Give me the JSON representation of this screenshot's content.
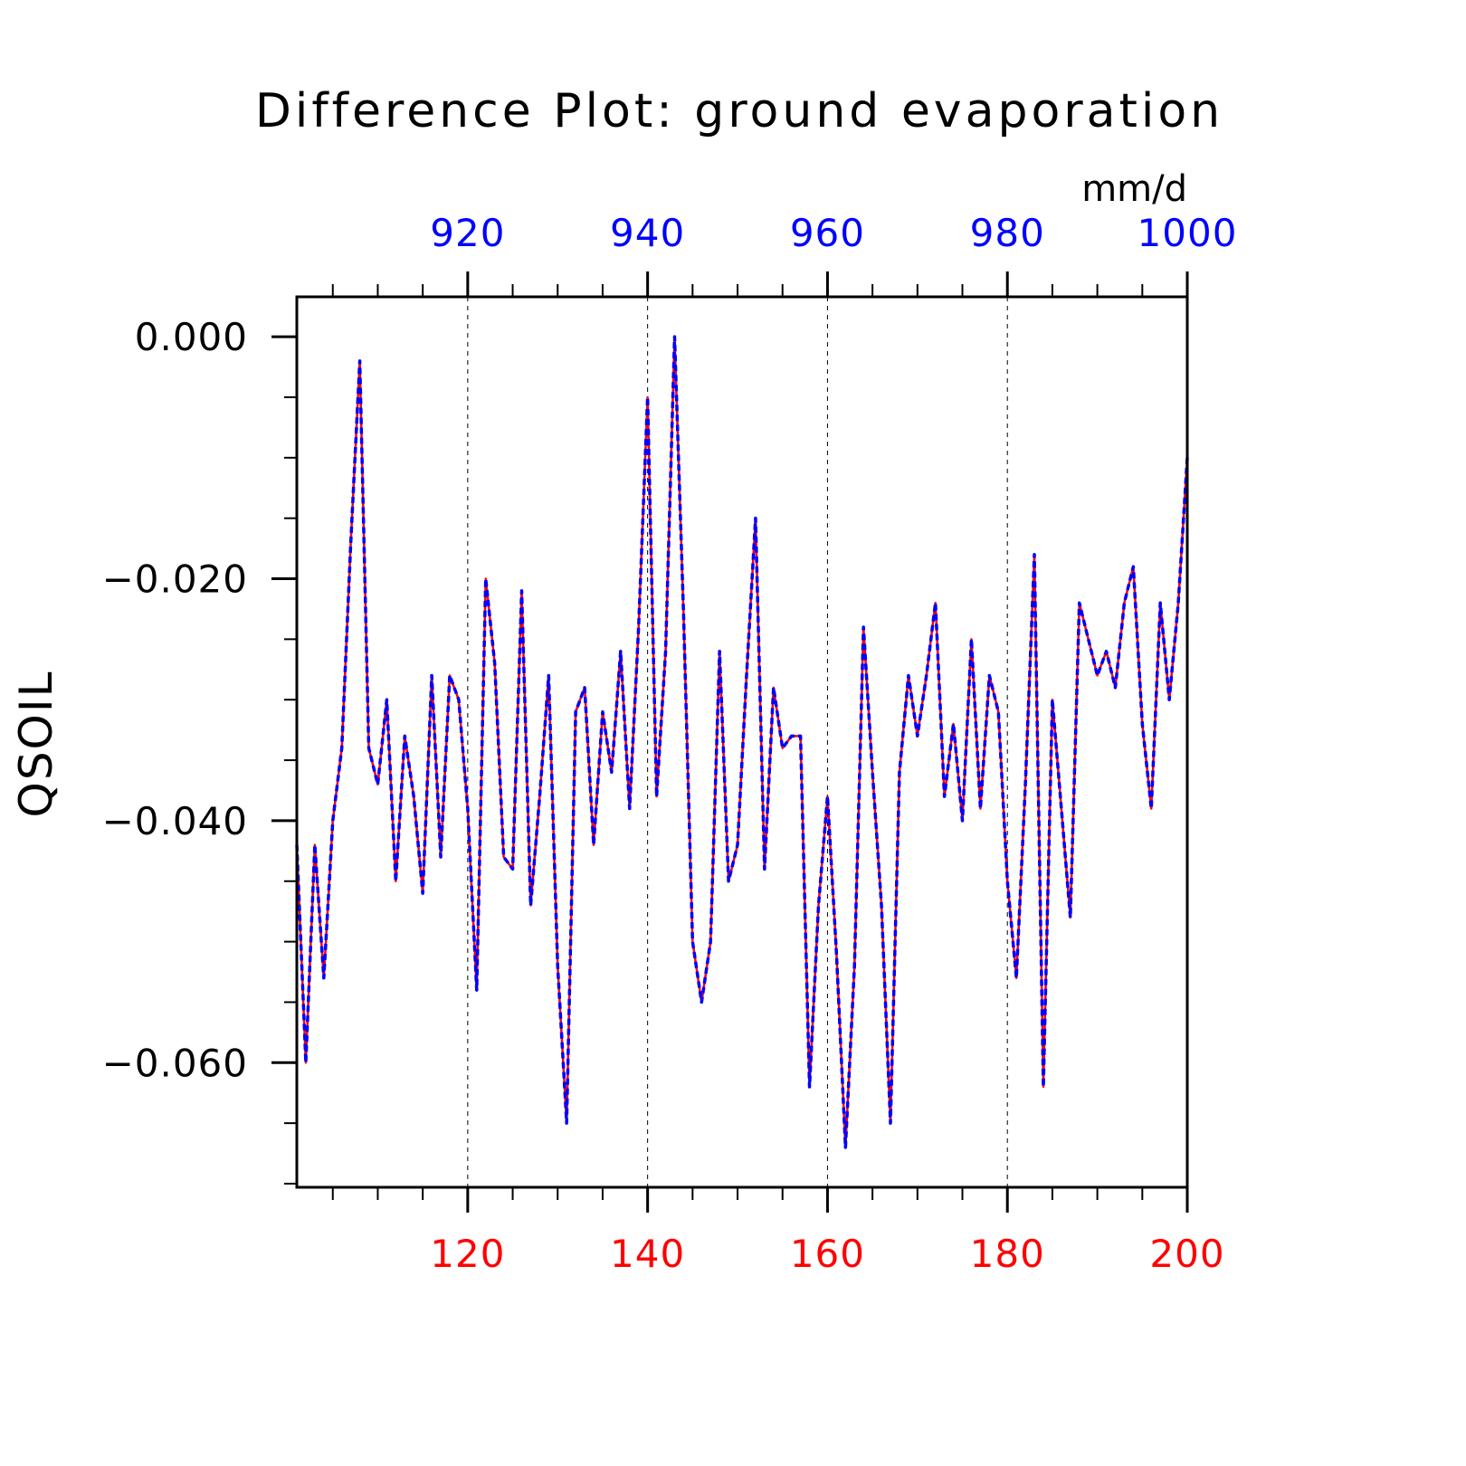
{
  "chart_data": {
    "type": "line",
    "title": "Difference Plot: ground evaporation",
    "units": "mm/d",
    "ylabel": "QSOIL",
    "xlabel": "",
    "xlim": [
      101,
      200
    ],
    "ylim": [
      -0.0703,
      0.0033
    ],
    "bottom_axis": {
      "color": "#ff0000",
      "ticks": [
        120,
        140,
        160,
        180,
        200
      ],
      "labels": [
        "120",
        "140",
        "160",
        "180",
        "200"
      ]
    },
    "top_axis": {
      "color": "#0000ff",
      "ticks": [
        120,
        140,
        160,
        180,
        200
      ],
      "labels": [
        "920",
        "940",
        "960",
        "980",
        "1000"
      ]
    },
    "y_ticks": [
      0.0,
      -0.02,
      -0.04,
      -0.06
    ],
    "y_tick_labels": [
      "0.000",
      "−0.020",
      "−0.040",
      "−0.060"
    ],
    "grid": "vertical dashed at labeled x ticks",
    "series": [
      {
        "color": "#ff0000",
        "style": "solid",
        "x": [
          101,
          102,
          103,
          104,
          105,
          106,
          107,
          108,
          109,
          110,
          111,
          112,
          113,
          114,
          115,
          116,
          117,
          118,
          119,
          120,
          121,
          122,
          123,
          124,
          125,
          126,
          127,
          128,
          129,
          130,
          131,
          132,
          133,
          134,
          135,
          136,
          137,
          138,
          139,
          140,
          141,
          142,
          143,
          144,
          145,
          146,
          147,
          148,
          149,
          150,
          151,
          152,
          153,
          154,
          155,
          156,
          157,
          158,
          159,
          160,
          161,
          162,
          163,
          164,
          165,
          166,
          167,
          168,
          169,
          170,
          171,
          172,
          173,
          174,
          175,
          176,
          177,
          178,
          179,
          180,
          181,
          182,
          183,
          184,
          185,
          186,
          187,
          188,
          189,
          190,
          191,
          192,
          193,
          194,
          195,
          196,
          197,
          198,
          199,
          200
        ],
        "values": [
          -0.042,
          -0.06,
          -0.042,
          -0.053,
          -0.04,
          -0.034,
          -0.017,
          -0.002,
          -0.034,
          -0.037,
          -0.03,
          -0.045,
          -0.033,
          -0.038,
          -0.046,
          -0.028,
          -0.043,
          -0.028,
          -0.03,
          -0.039,
          -0.054,
          -0.02,
          -0.027,
          -0.043,
          -0.044,
          -0.021,
          -0.047,
          -0.038,
          -0.028,
          -0.052,
          -0.065,
          -0.031,
          -0.029,
          -0.042,
          -0.031,
          -0.036,
          -0.026,
          -0.039,
          -0.024,
          -0.005,
          -0.038,
          -0.026,
          0.0,
          -0.023,
          -0.05,
          -0.055,
          -0.05,
          -0.026,
          -0.045,
          -0.042,
          -0.028,
          -0.015,
          -0.044,
          -0.029,
          -0.034,
          -0.033,
          -0.033,
          -0.062,
          -0.047,
          -0.038,
          -0.051,
          -0.067,
          -0.052,
          -0.024,
          -0.036,
          -0.047,
          -0.065,
          -0.036,
          -0.028,
          -0.033,
          -0.028,
          -0.022,
          -0.038,
          -0.032,
          -0.04,
          -0.025,
          -0.039,
          -0.028,
          -0.031,
          -0.045,
          -0.053,
          -0.037,
          -0.018,
          -0.062,
          -0.03,
          -0.039,
          -0.048,
          -0.022,
          -0.025,
          -0.028,
          -0.026,
          -0.029,
          -0.022,
          -0.019,
          -0.032,
          -0.039,
          -0.022,
          -0.03,
          -0.022,
          -0.01
        ]
      },
      {
        "color": "#0000ff",
        "style": "dashed",
        "x": [
          101,
          102,
          103,
          104,
          105,
          106,
          107,
          108,
          109,
          110,
          111,
          112,
          113,
          114,
          115,
          116,
          117,
          118,
          119,
          120,
          121,
          122,
          123,
          124,
          125,
          126,
          127,
          128,
          129,
          130,
          131,
          132,
          133,
          134,
          135,
          136,
          137,
          138,
          139,
          140,
          141,
          142,
          143,
          144,
          145,
          146,
          147,
          148,
          149,
          150,
          151,
          152,
          153,
          154,
          155,
          156,
          157,
          158,
          159,
          160,
          161,
          162,
          163,
          164,
          165,
          166,
          167,
          168,
          169,
          170,
          171,
          172,
          173,
          174,
          175,
          176,
          177,
          178,
          179,
          180,
          181,
          182,
          183,
          184,
          185,
          186,
          187,
          188,
          189,
          190,
          191,
          192,
          193,
          194,
          195,
          196,
          197,
          198,
          199,
          200
        ],
        "values": [
          -0.042,
          -0.06,
          -0.042,
          -0.053,
          -0.04,
          -0.034,
          -0.017,
          -0.002,
          -0.034,
          -0.037,
          -0.03,
          -0.045,
          -0.033,
          -0.038,
          -0.046,
          -0.028,
          -0.043,
          -0.028,
          -0.03,
          -0.039,
          -0.054,
          -0.02,
          -0.027,
          -0.043,
          -0.044,
          -0.021,
          -0.047,
          -0.038,
          -0.028,
          -0.052,
          -0.065,
          -0.031,
          -0.029,
          -0.042,
          -0.031,
          -0.036,
          -0.026,
          -0.039,
          -0.024,
          -0.005,
          -0.038,
          -0.026,
          0.0,
          -0.023,
          -0.05,
          -0.055,
          -0.05,
          -0.026,
          -0.045,
          -0.042,
          -0.028,
          -0.015,
          -0.044,
          -0.029,
          -0.034,
          -0.033,
          -0.033,
          -0.062,
          -0.047,
          -0.038,
          -0.051,
          -0.067,
          -0.052,
          -0.024,
          -0.036,
          -0.047,
          -0.065,
          -0.036,
          -0.028,
          -0.033,
          -0.028,
          -0.022,
          -0.038,
          -0.032,
          -0.04,
          -0.025,
          -0.039,
          -0.028,
          -0.031,
          -0.045,
          -0.053,
          -0.037,
          -0.018,
          -0.062,
          -0.03,
          -0.039,
          -0.048,
          -0.022,
          -0.025,
          -0.028,
          -0.026,
          -0.029,
          -0.022,
          -0.019,
          -0.032,
          -0.039,
          -0.022,
          -0.03,
          -0.022,
          -0.01
        ]
      }
    ]
  }
}
